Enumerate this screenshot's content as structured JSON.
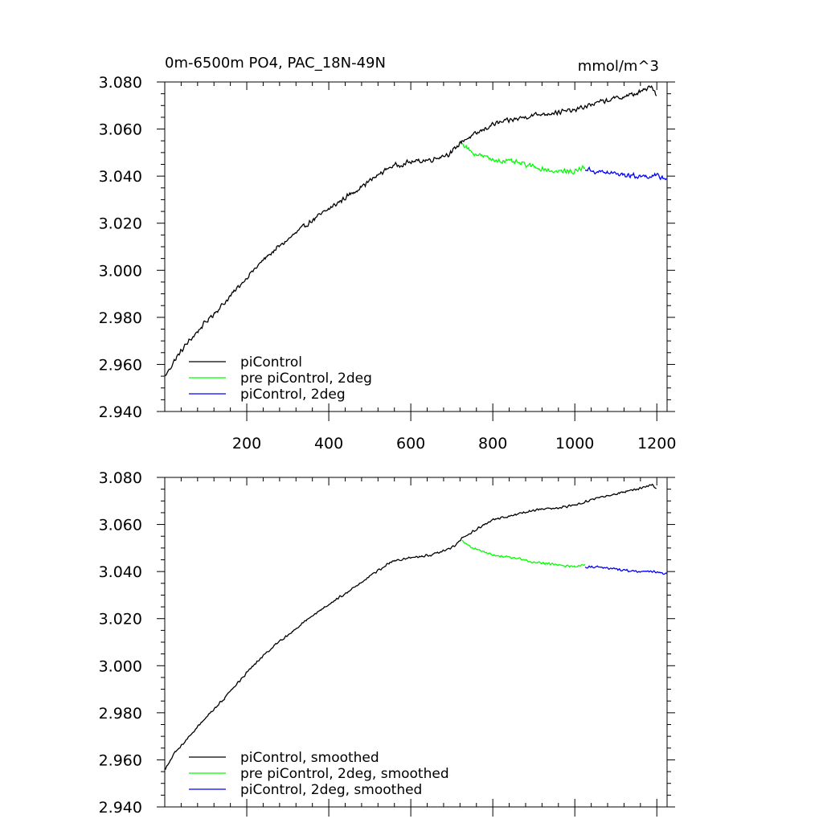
{
  "figure": {
    "title": "0m-6500m PO4, PAC_18N-49N",
    "units": "mmol/m^3"
  },
  "chart_data": [
    {
      "type": "line",
      "panel": "top",
      "xlim": [
        0,
        1225
      ],
      "ylim": [
        2.94,
        3.08
      ],
      "x_ticks": [
        200,
        400,
        600,
        800,
        1000,
        1200
      ],
      "x_tick_labels": [
        "200",
        "400",
        "600",
        "800",
        "1000",
        "1200"
      ],
      "y_ticks": [
        2.94,
        2.96,
        2.98,
        3.0,
        3.02,
        3.04,
        3.06,
        3.08
      ],
      "y_tick_labels": [
        "2.940",
        "2.960",
        "2.980",
        "3.000",
        "3.020",
        "3.040",
        "3.060",
        "3.080"
      ],
      "legend": {
        "placement": "bottom-left",
        "labels": [
          "piControl",
          "pre piControl, 2deg",
          "piControl, 2deg"
        ]
      },
      "series": [
        {
          "name": "piControl",
          "color": "#000000",
          "x": [
            1,
            25,
            50,
            75,
            100,
            150,
            200,
            250,
            300,
            350,
            400,
            450,
            500,
            550,
            600,
            650,
            700,
            725,
            750,
            800,
            850,
            900,
            950,
            1000,
            1050,
            1100,
            1150,
            1175,
            1190,
            1200
          ],
          "y": [
            2.955,
            2.962,
            2.968,
            2.973,
            2.978,
            2.987,
            2.997,
            3.006,
            3.013,
            3.02,
            3.026,
            3.032,
            3.038,
            3.044,
            3.046,
            3.047,
            3.05,
            3.055,
            3.057,
            3.062,
            3.064,
            3.066,
            3.067,
            3.068,
            3.071,
            3.073,
            3.075,
            3.077,
            3.078,
            3.074
          ],
          "noise": 0.0013
        },
        {
          "name": "pre piControl, 2deg",
          "color": "#00ff00",
          "x": [
            725,
            750,
            800,
            850,
            900,
            950,
            1000,
            1025
          ],
          "y": [
            3.054,
            3.05,
            3.047,
            3.046,
            3.044,
            3.042,
            3.042,
            3.044
          ],
          "noise": 0.0013
        },
        {
          "name": "piControl, 2deg",
          "color": "#0000ff",
          "x": [
            1025,
            1050,
            1100,
            1150,
            1200,
            1225
          ],
          "y": [
            3.043,
            3.042,
            3.041,
            3.04,
            3.04,
            3.039
          ],
          "noise": 0.0013
        }
      ]
    },
    {
      "type": "line",
      "panel": "bottom",
      "xlim": [
        0,
        1225
      ],
      "ylim": [
        2.94,
        3.08
      ],
      "x_ticks": [
        200,
        400,
        600,
        800,
        1000,
        1200
      ],
      "x_tick_labels": [],
      "y_ticks": [
        2.94,
        2.96,
        2.98,
        3.0,
        3.02,
        3.04,
        3.06,
        3.08
      ],
      "y_tick_labels": [
        "2.940",
        "2.960",
        "2.980",
        "3.000",
        "3.020",
        "3.040",
        "3.060",
        "3.080"
      ],
      "legend": {
        "placement": "bottom-left",
        "labels": [
          "piControl, smoothed",
          "pre piControl, 2deg, smoothed",
          "piControl, 2deg, smoothed"
        ]
      },
      "series": [
        {
          "name": "piControl, smoothed",
          "color": "#000000",
          "x": [
            1,
            25,
            50,
            75,
            100,
            150,
            200,
            250,
            300,
            350,
            400,
            450,
            500,
            550,
            600,
            650,
            700,
            725,
            750,
            800,
            850,
            900,
            950,
            1000,
            1050,
            1100,
            1150,
            1175,
            1190,
            1200
          ],
          "y": [
            2.956,
            2.963,
            2.968,
            2.973,
            2.978,
            2.987,
            2.997,
            3.006,
            3.013,
            3.02,
            3.026,
            3.032,
            3.038,
            3.044,
            3.046,
            3.047,
            3.05,
            3.054,
            3.057,
            3.062,
            3.064,
            3.066,
            3.067,
            3.068,
            3.071,
            3.073,
            3.075,
            3.076,
            3.077,
            3.075
          ],
          "noise": 0.0006
        },
        {
          "name": "pre piControl, 2deg, smoothed",
          "color": "#00ff00",
          "x": [
            725,
            750,
            800,
            850,
            900,
            950,
            1000,
            1025
          ],
          "y": [
            3.053,
            3.05,
            3.047,
            3.046,
            3.044,
            3.043,
            3.042,
            3.043
          ],
          "noise": 0.0006
        },
        {
          "name": "piControl, 2deg, smoothed",
          "color": "#0000ff",
          "x": [
            1025,
            1050,
            1100,
            1150,
            1200,
            1225
          ],
          "y": [
            3.042,
            3.042,
            3.041,
            3.04,
            3.04,
            3.039
          ],
          "noise": 0.0006
        }
      ]
    }
  ]
}
